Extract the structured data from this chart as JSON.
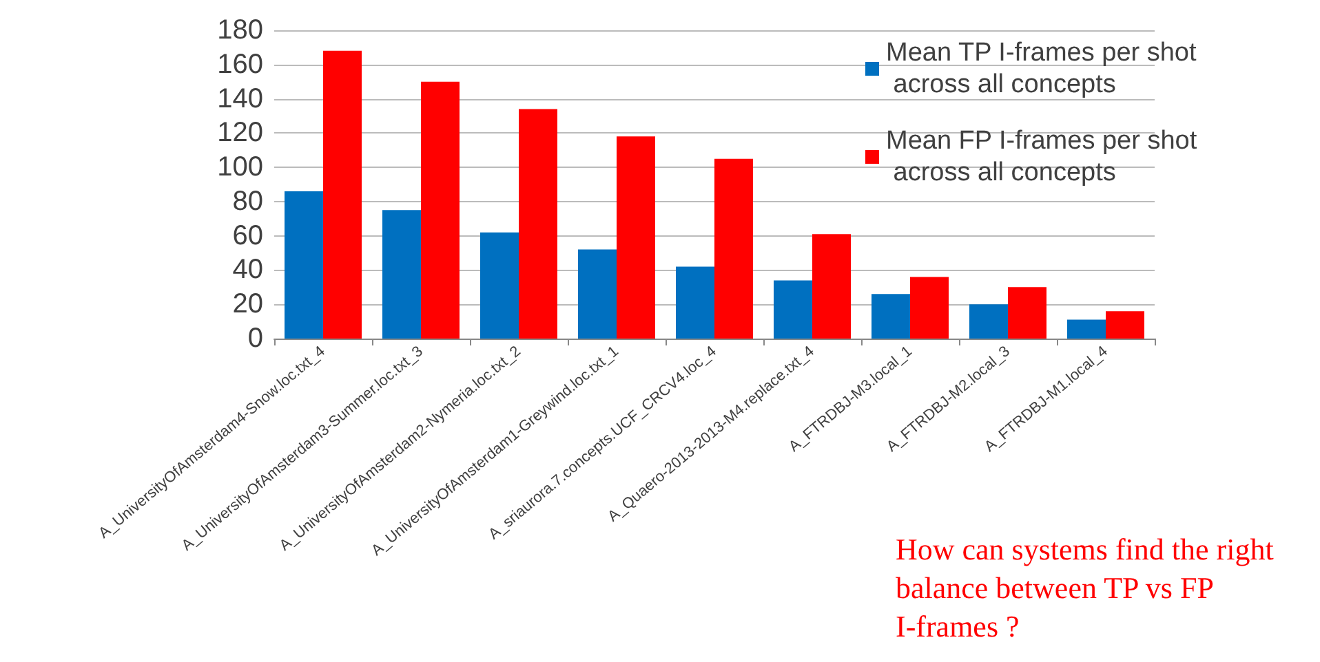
{
  "chart_data": {
    "type": "bar",
    "categories": [
      "A_UniversityOfAmsterdam4-Snow.loc.txt_4",
      "A_UniversityOfAmsterdam3-Summer.loc.txt_3",
      "A_UniversityOfAmsterdam2-Nymeria.loc.txt_2",
      "A_UniversityOfAmsterdam1-Greywind.loc.txt_1",
      "A_sriaurora.7.concepts.UCF_CRCV4.loc_4",
      "A_Quaero-2013-2013-M4.replace.txt_4",
      "A_FTRDBJ-M3.local_1",
      "A_FTRDBJ-M2.local_3",
      "A_FTRDBJ-M1.local_4"
    ],
    "series": [
      {
        "name": "Mean TP I-frames per shot across all concepts",
        "color": "#0070c0",
        "values": [
          86,
          75,
          62,
          52,
          42,
          34,
          26,
          20,
          11
        ]
      },
      {
        "name": "Mean FP I-frames per shot across all concepts",
        "color": "#ff0000",
        "values": [
          168,
          150,
          134,
          118,
          105,
          61,
          36,
          30,
          16
        ]
      }
    ],
    "ylim": [
      0,
      180
    ],
    "yticks": [
      0,
      20,
      40,
      60,
      80,
      100,
      120,
      140,
      160,
      180
    ],
    "grid": "y",
    "legend": "top right",
    "annotations": [
      "How can systems find the right balance between TP vs FP I-frames ?"
    ]
  }
}
